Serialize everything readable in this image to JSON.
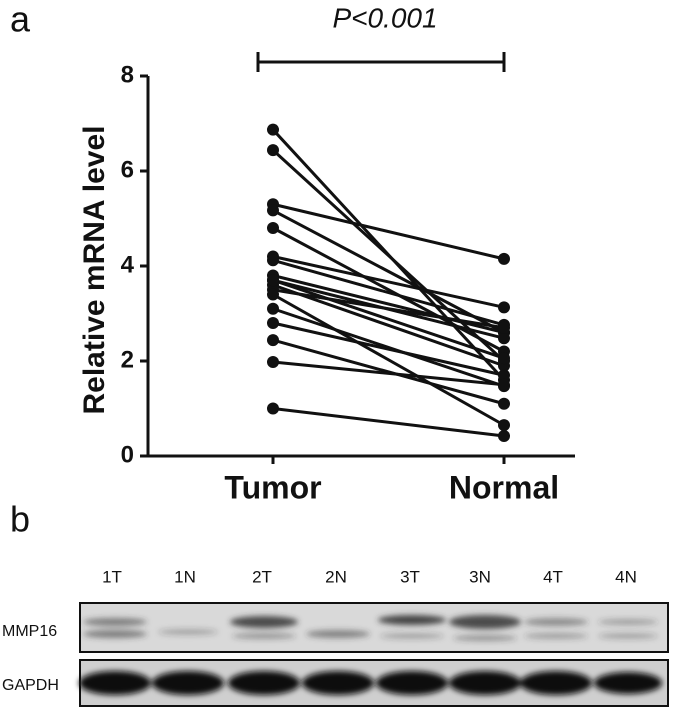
{
  "panel_labels": [
    "a",
    "b"
  ],
  "chart_data": {
    "type": "paired_line",
    "annotation": "P<0.001",
    "ylabel": "Relative mRNA level",
    "categories": [
      "Tumor",
      "Normal"
    ],
    "pairs": [
      [
        6.87,
        1.6
      ],
      [
        6.44,
        2.0
      ],
      [
        5.3,
        4.15
      ],
      [
        5.17,
        2.6
      ],
      [
        4.8,
        2.2
      ],
      [
        4.2,
        3.13
      ],
      [
        4.12,
        2.76
      ],
      [
        3.8,
        2.6
      ],
      [
        3.7,
        2.48
      ],
      [
        3.6,
        1.9
      ],
      [
        3.5,
        2.7
      ],
      [
        3.1,
        1.47
      ],
      [
        2.8,
        1.7
      ],
      [
        2.44,
        1.1
      ],
      [
        1.98,
        1.5
      ],
      [
        1.0,
        0.42
      ],
      [
        3.4,
        0.65
      ],
      [
        3.7,
        2.06
      ]
    ],
    "color": "#111111",
    "ylim": [
      0,
      8
    ],
    "yticks": [
      0,
      2,
      4,
      6,
      8
    ]
  },
  "blot": {
    "lanes": [
      "1T",
      "1N",
      "2T",
      "2N",
      "3T",
      "3N",
      "4T",
      "4N"
    ],
    "rows": [
      "MMP16",
      "GAPDH"
    ]
  }
}
